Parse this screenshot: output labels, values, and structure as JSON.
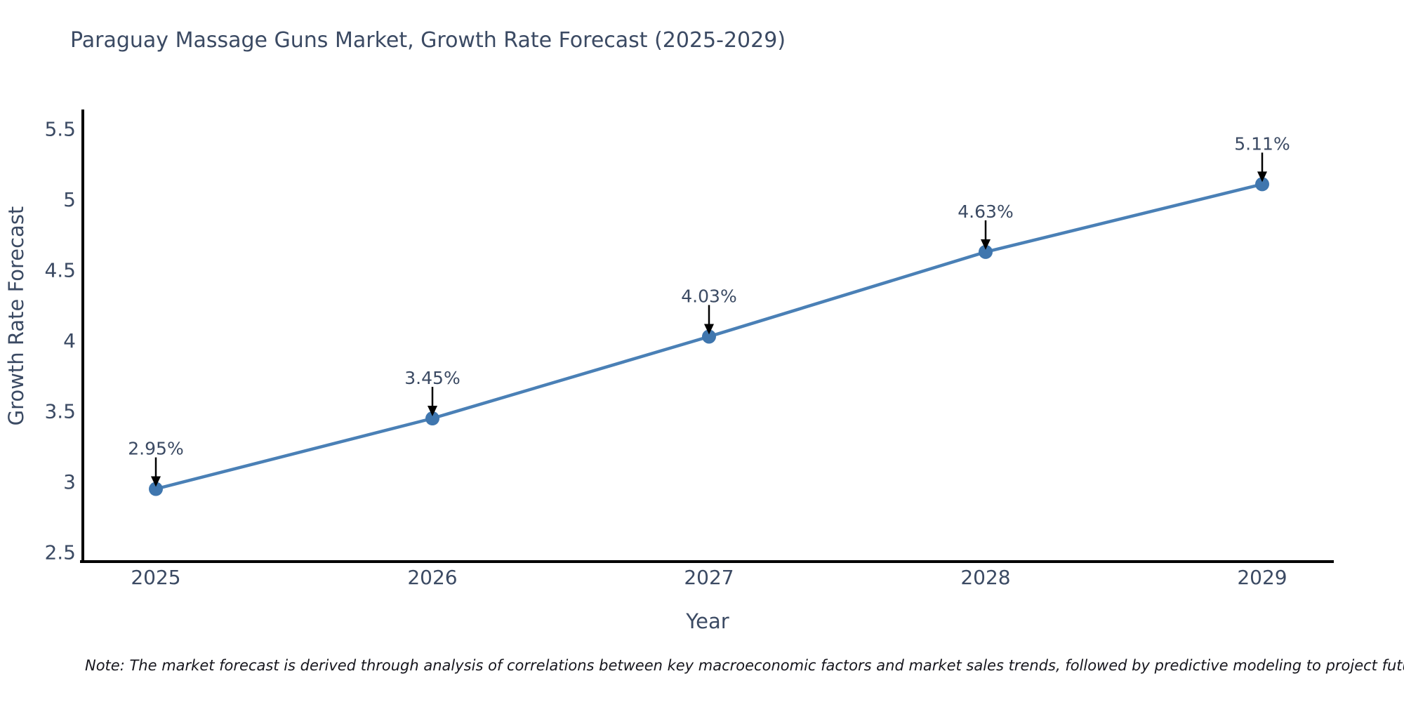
{
  "header": {
    "title": "Paraguay Massage Guns Market, Growth Rate Forecast (2025-2029)"
  },
  "chart_data": {
    "type": "line",
    "title": "Paraguay Massage Guns Market, Growth Rate Forecast (2025-2029)",
    "categories": [
      "2025",
      "2026",
      "2027",
      "2028",
      "2029"
    ],
    "x": [
      2025,
      2026,
      2027,
      2028,
      2029
    ],
    "series": [
      {
        "name": "Growth Rate Forecast",
        "values": [
          2.95,
          3.45,
          4.03,
          4.63,
          5.11
        ]
      }
    ],
    "point_labels": [
      "2.95%",
      "3.45%",
      "4.03%",
      "4.63%",
      "5.11%"
    ],
    "xlabel": "Year",
    "ylabel": "Growth Rate Forecast",
    "ylim": [
      2.5,
      5.5
    ],
    "yticks": [
      2.5,
      3,
      3.5,
      4,
      4.5,
      5,
      5.5
    ],
    "grid": false,
    "legend": "none",
    "annotation_style": "black arrow pointing down to each marker"
  },
  "footer": {
    "note": "Note: The market forecast is derived through analysis of correlations between key macroeconomic factors and market sales trends, followed by predictive modeling to project future sales"
  },
  "colors": {
    "background": "#ffffff",
    "line": "#4a80b6",
    "marker": "#3f76ae",
    "axis": "#000000",
    "arrow": "#000000",
    "text": "#3b4a63",
    "note_text": "#16161d"
  }
}
